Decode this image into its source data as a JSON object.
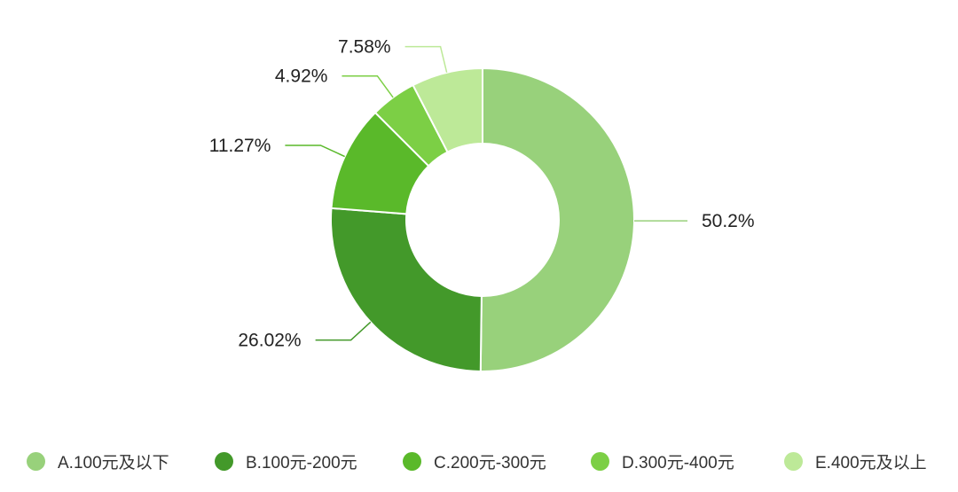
{
  "chart_data": {
    "type": "pie",
    "variant": "donut",
    "categories": [
      "A.100元及以下",
      "B.100元-200元",
      "C.200元-300元",
      "D.300元-400元",
      "E.400元及以上"
    ],
    "values": [
      50.2,
      26.02,
      11.27,
      4.92,
      7.58
    ],
    "labels": [
      "50.2%",
      "26.02%",
      "11.27%",
      "4.92%",
      "7.58%"
    ],
    "colors": [
      "#98d17b",
      "#43992a",
      "#5ab92a",
      "#7ccf45",
      "#bde998"
    ],
    "legend_position": "bottom",
    "title": ""
  }
}
